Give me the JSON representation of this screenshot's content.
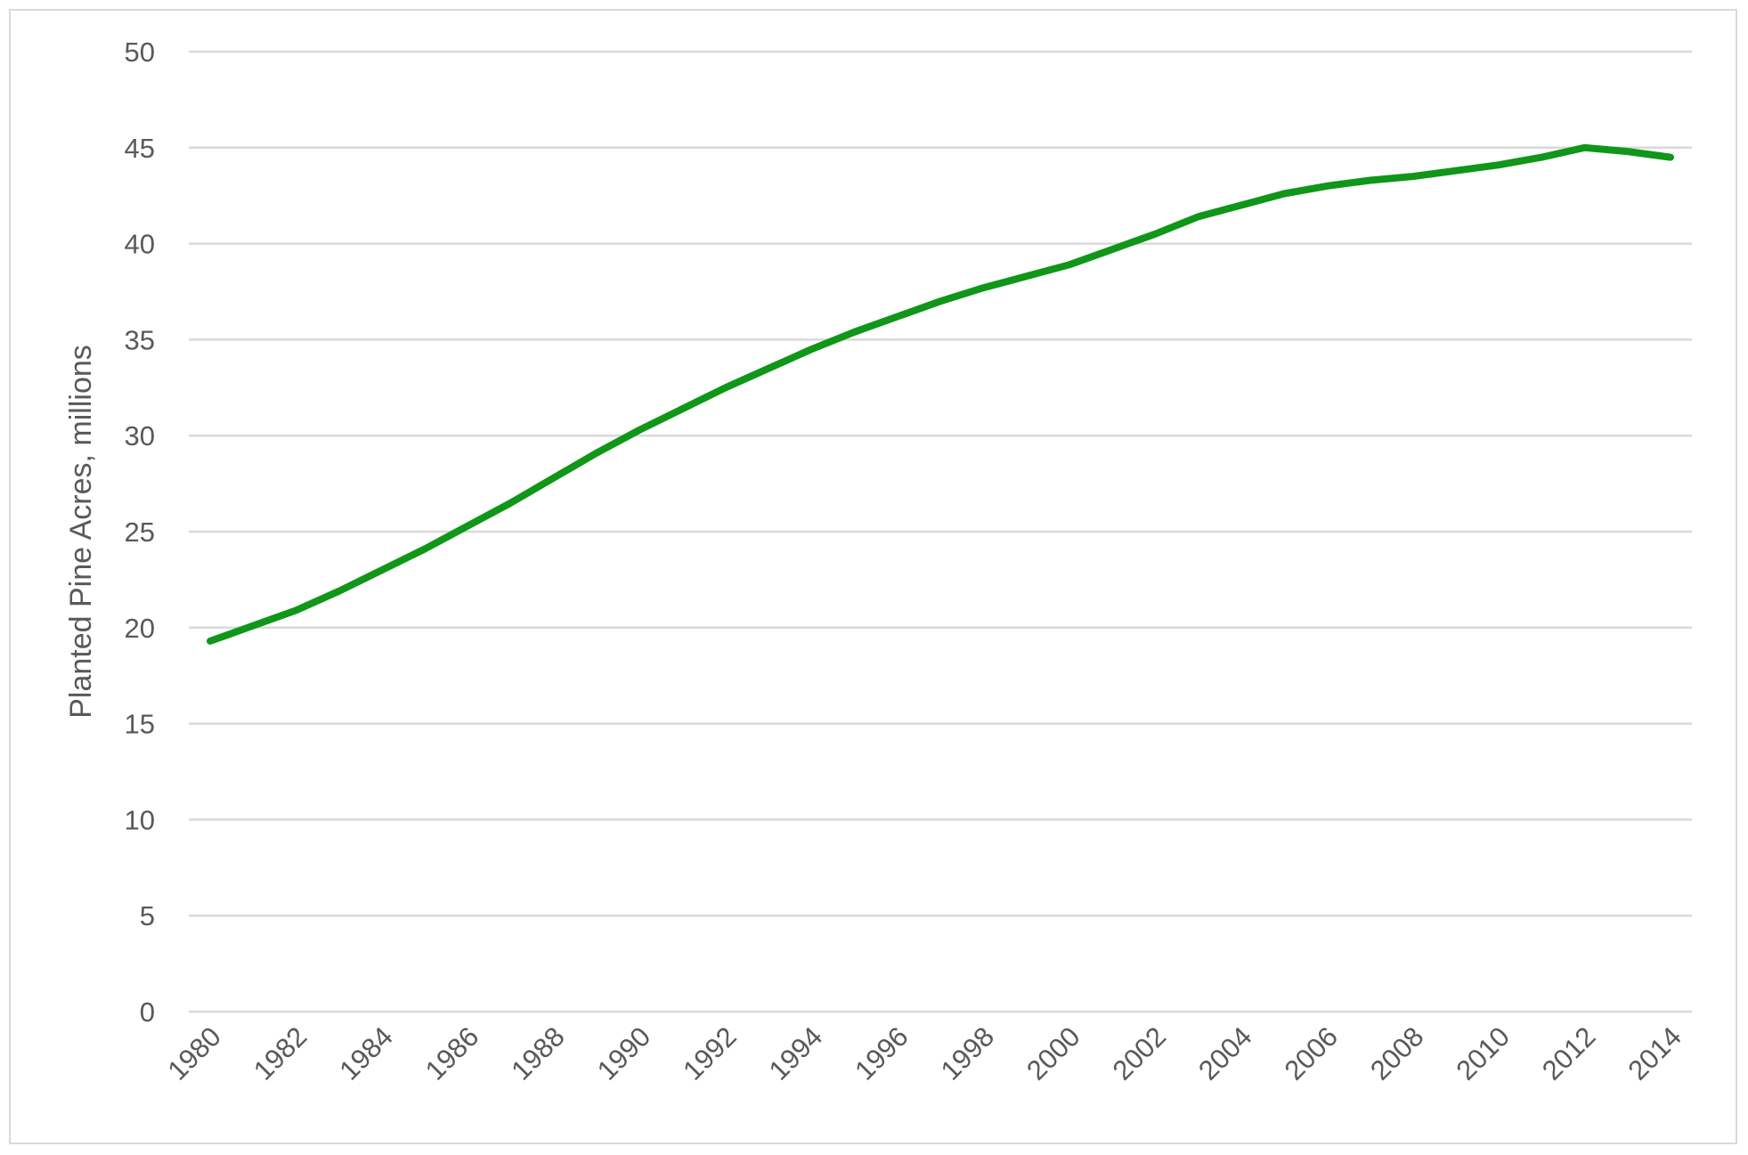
{
  "chart_data": {
    "type": "line",
    "title": "",
    "xlabel": "",
    "ylabel": "Planted Pine Acres, millions",
    "ylim": [
      0,
      50
    ],
    "yticks": [
      0,
      5,
      10,
      15,
      20,
      25,
      30,
      35,
      40,
      45,
      50
    ],
    "xlim": [
      1980,
      2014
    ],
    "xticks": [
      "1980",
      "1982",
      "1984",
      "1986",
      "1988",
      "1990",
      "1992",
      "1994",
      "1996",
      "1998",
      "2000",
      "2002",
      "2004",
      "2006",
      "2008",
      "2010",
      "2012",
      "2014"
    ],
    "grid": true,
    "legend": "none",
    "line_color": "#109618",
    "grid_color": "#d9d9d9",
    "x": [
      1980,
      1981,
      1982,
      1983,
      1984,
      1985,
      1986,
      1987,
      1988,
      1989,
      1990,
      1991,
      1992,
      1993,
      1994,
      1995,
      1996,
      1997,
      1998,
      1999,
      2000,
      2001,
      2002,
      2003,
      2004,
      2005,
      2006,
      2007,
      2008,
      2009,
      2010,
      2011,
      2012,
      2013,
      2014
    ],
    "series": [
      {
        "values": [
          19.3,
          20.1,
          20.9,
          21.9,
          23.0,
          24.1,
          25.3,
          26.5,
          27.8,
          29.1,
          30.3,
          31.4,
          32.5,
          33.5,
          34.5,
          35.4,
          36.2,
          37.0,
          37.7,
          38.3,
          38.9,
          39.7,
          40.5,
          41.4,
          42.0,
          42.6,
          43.0,
          43.3,
          43.5,
          43.8,
          44.1,
          44.5,
          45.0,
          44.8,
          44.5
        ]
      }
    ]
  }
}
